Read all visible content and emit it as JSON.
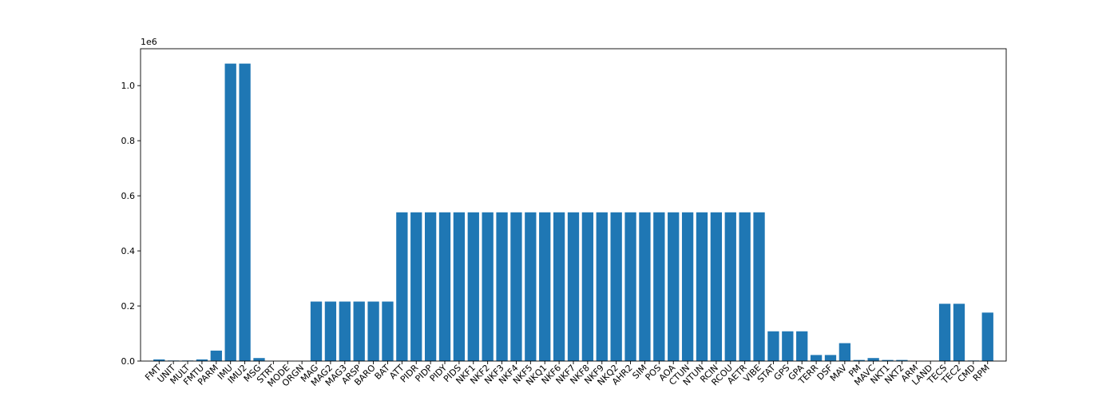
{
  "chart_data": {
    "type": "bar",
    "title": "",
    "xlabel": "",
    "ylabel": "",
    "offset_text": "1e6",
    "ylim": [
      0,
      1.134
    ],
    "yticks": [
      0.0,
      0.2,
      0.4,
      0.6,
      0.8,
      1.0
    ],
    "ytick_labels": [
      "0.0",
      "0.2",
      "0.4",
      "0.6",
      "0.8",
      "1.0"
    ],
    "x_tick_rotation_deg": 45,
    "bar_color": "#1f77b4",
    "grid": false,
    "legend": "none",
    "categories": [
      "FMT",
      "UNIT",
      "MULT",
      "FMTU",
      "PARM",
      "IMU",
      "IMU2",
      "MSG",
      "STRT",
      "MODE",
      "ORGN",
      "MAG",
      "MAG2",
      "MAG3",
      "ARSP",
      "BARO",
      "BAT",
      "ATT",
      "PIDR",
      "PIDP",
      "PIDY",
      "PIDS",
      "NKF1",
      "NKF2",
      "NKF3",
      "NKF4",
      "NKF5",
      "NKQ1",
      "NKF6",
      "NKF7",
      "NKF8",
      "NKF9",
      "NKQ2",
      "AHR2",
      "SIM",
      "POS",
      "AOA",
      "CTUN",
      "NTUN",
      "RCIN",
      "RCOU",
      "AETR",
      "VIBE",
      "STAT",
      "GPS",
      "GPA",
      "TERR",
      "DSF",
      "MAV",
      "PM",
      "MAVC",
      "NKT1",
      "NKT2",
      "ARM",
      "LAND",
      "TECS",
      "TEC2",
      "CMD",
      "RPM"
    ],
    "values": [
      0.006,
      0.002,
      0.002,
      0.006,
      0.038,
      1.08,
      1.08,
      0.011,
      0.0005,
      0.0005,
      0.0005,
      0.216,
      0.216,
      0.216,
      0.216,
      0.216,
      0.216,
      0.54,
      0.54,
      0.54,
      0.54,
      0.54,
      0.54,
      0.54,
      0.54,
      0.54,
      0.54,
      0.54,
      0.54,
      0.54,
      0.54,
      0.54,
      0.54,
      0.54,
      0.54,
      0.54,
      0.54,
      0.54,
      0.54,
      0.54,
      0.54,
      0.54,
      0.54,
      0.108,
      0.108,
      0.108,
      0.022,
      0.022,
      0.065,
      0.004,
      0.011,
      0.004,
      0.004,
      0.0005,
      0.0005,
      0.208,
      0.208,
      0.002,
      0.176
    ]
  }
}
